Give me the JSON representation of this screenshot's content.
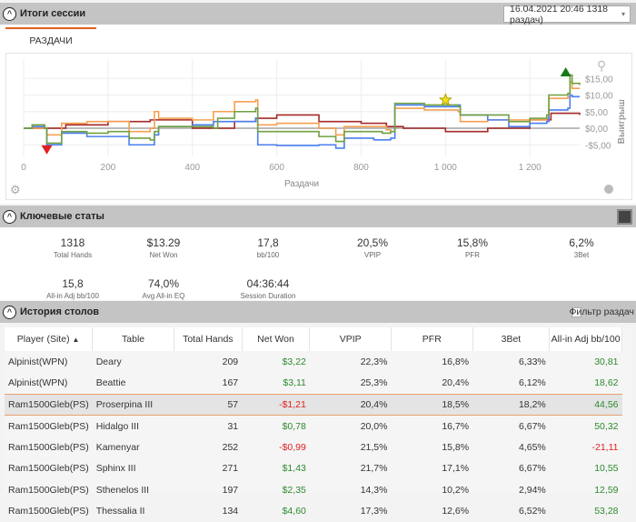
{
  "session": {
    "title": "Итоги сессии",
    "selector": "16.04.2021 20:46 1318 раздач)",
    "tab": "РАЗДАЧИ"
  },
  "chart_data": {
    "type": "line",
    "xlabel": "Раздачи",
    "ylabel": "Выигрыш",
    "xlim": [
      0,
      1318
    ],
    "ylim": [
      -8,
      18
    ],
    "xticks": [
      {
        "v": 0,
        "l": "0"
      },
      {
        "v": 200,
        "l": "200"
      },
      {
        "v": 400,
        "l": "400"
      },
      {
        "v": 600,
        "l": "600"
      },
      {
        "v": 800,
        "l": "800"
      },
      {
        "v": 1000,
        "l": "1 000"
      },
      {
        "v": 1200,
        "l": "1 200"
      }
    ],
    "yticks": [
      {
        "v": 15,
        "l": "$15,00"
      },
      {
        "v": 10,
        "l": "$10,00"
      },
      {
        "v": 5,
        "l": "$5,00"
      },
      {
        "v": 0,
        "l": "$0,00"
      },
      {
        "v": -5,
        "l": "-$5,00"
      }
    ],
    "series": [
      {
        "name": "red",
        "color": "#a52a2a",
        "points": [
          [
            0,
            0
          ],
          [
            50,
            0
          ],
          [
            100,
            1
          ],
          [
            200,
            2
          ],
          [
            300,
            2.5
          ],
          [
            400,
            0
          ],
          [
            500,
            2
          ],
          [
            550,
            3
          ],
          [
            600,
            4
          ],
          [
            700,
            2
          ],
          [
            800,
            1.5
          ],
          [
            860,
            0.5
          ],
          [
            900,
            0
          ],
          [
            1000,
            -1
          ],
          [
            1100,
            0
          ],
          [
            1200,
            2.5
          ],
          [
            1250,
            4.5
          ],
          [
            1318,
            4
          ]
        ]
      },
      {
        "name": "orange",
        "color": "#f5a050",
        "points": [
          [
            0,
            0
          ],
          [
            55,
            -2
          ],
          [
            90,
            1.5
          ],
          [
            150,
            2
          ],
          [
            250,
            -1
          ],
          [
            300,
            0
          ],
          [
            310,
            5
          ],
          [
            320,
            3
          ],
          [
            400,
            2.5
          ],
          [
            450,
            5
          ],
          [
            500,
            8
          ],
          [
            550,
            8.5
          ],
          [
            555,
            1
          ],
          [
            600,
            1.5
          ],
          [
            700,
            0
          ],
          [
            740,
            -2
          ],
          [
            760,
            0.5
          ],
          [
            860,
            -0.5
          ],
          [
            870,
            -1
          ],
          [
            880,
            6
          ],
          [
            950,
            5.5
          ],
          [
            1030,
            5
          ],
          [
            1035,
            2
          ],
          [
            1100,
            2.5
          ],
          [
            1240,
            3
          ],
          [
            1245,
            9
          ],
          [
            1290,
            9.5
          ],
          [
            1295,
            14
          ],
          [
            1300,
            12
          ],
          [
            1318,
            12
          ]
        ]
      },
      {
        "name": "blue",
        "color": "#4a7ff0",
        "points": [
          [
            0,
            0
          ],
          [
            20,
            0.5
          ],
          [
            50,
            0
          ],
          [
            55,
            -5
          ],
          [
            90,
            -1.5
          ],
          [
            150,
            -2.5
          ],
          [
            250,
            -5
          ],
          [
            300,
            -5
          ],
          [
            310,
            -2
          ],
          [
            320,
            0.5
          ],
          [
            400,
            1
          ],
          [
            450,
            2
          ],
          [
            550,
            3
          ],
          [
            555,
            -5
          ],
          [
            600,
            -5.2
          ],
          [
            700,
            -5
          ],
          [
            740,
            -6
          ],
          [
            760,
            -3
          ],
          [
            830,
            -3.5
          ],
          [
            870,
            -3
          ],
          [
            880,
            7
          ],
          [
            950,
            6.5
          ],
          [
            1030,
            7
          ],
          [
            1035,
            4
          ],
          [
            1100,
            2.5
          ],
          [
            1150,
            0.5
          ],
          [
            1200,
            1.5
          ],
          [
            1240,
            2
          ],
          [
            1245,
            5.5
          ],
          [
            1290,
            6
          ],
          [
            1295,
            10
          ],
          [
            1300,
            9.5
          ],
          [
            1318,
            9.5
          ]
        ]
      },
      {
        "name": "green",
        "color": "#70a040",
        "points": [
          [
            0,
            0
          ],
          [
            20,
            1
          ],
          [
            50,
            0
          ],
          [
            55,
            -4.5
          ],
          [
            90,
            -1
          ],
          [
            150,
            -1.5
          ],
          [
            200,
            -1
          ],
          [
            250,
            -3
          ],
          [
            300,
            -3.5
          ],
          [
            310,
            -1
          ],
          [
            320,
            0.5
          ],
          [
            450,
            0
          ],
          [
            460,
            3
          ],
          [
            500,
            5
          ],
          [
            550,
            6
          ],
          [
            555,
            -1
          ],
          [
            600,
            -1
          ],
          [
            700,
            -2.5
          ],
          [
            740,
            -4
          ],
          [
            760,
            -1
          ],
          [
            850,
            -1.5
          ],
          [
            870,
            -1
          ],
          [
            880,
            7.5
          ],
          [
            950,
            7
          ],
          [
            1030,
            6.5
          ],
          [
            1035,
            4
          ],
          [
            1100,
            4
          ],
          [
            1150,
            2
          ],
          [
            1200,
            3
          ],
          [
            1240,
            4
          ],
          [
            1245,
            10
          ],
          [
            1290,
            10.5
          ],
          [
            1295,
            16
          ],
          [
            1300,
            13.5
          ],
          [
            1318,
            13
          ]
        ]
      }
    ],
    "markers": [
      {
        "type": "min",
        "x": 55,
        "y": -6.5,
        "color": "#e02020"
      },
      {
        "type": "star",
        "x": 1000,
        "y": 8.5,
        "color": "#f5e020"
      },
      {
        "type": "max",
        "x": 1285,
        "y": 17,
        "color": "#1a7a1a"
      }
    ]
  },
  "keystats": {
    "title": "Ключевые статы",
    "items": [
      {
        "v": "1318",
        "l": "Total Hands"
      },
      {
        "v": "$13.29",
        "l": "Net Won"
      },
      {
        "v": "17,8",
        "l": "bb/100"
      },
      {
        "v": "20,5%",
        "l": "VPIP"
      },
      {
        "v": "15,8%",
        "l": "PFR"
      },
      {
        "v": "6,2%",
        "l": "3Bet"
      },
      {
        "v": "15,8",
        "l": "All-in Adj bb/100"
      },
      {
        "v": "74,0%",
        "l": "Avg All-in EQ"
      },
      {
        "v": "04:36:44",
        "l": "Session Duration"
      }
    ]
  },
  "history": {
    "title": "История столов",
    "filter": "Фильтр раздач",
    "columns": [
      "Player (Site)",
      "Table",
      "Total Hands",
      "Net Won",
      "VPIP",
      "PFR",
      "3Bet",
      "All-in Adj bb/100"
    ],
    "rows": [
      [
        "Alpinist(WPN)",
        "Deary",
        "209",
        "$3,22",
        "22,3%",
        "16,8%",
        "6,33%",
        "30,81"
      ],
      [
        "Alpinist(WPN)",
        "Beattie",
        "167",
        "$3,11",
        "25,3%",
        "20,4%",
        "6,12%",
        "18,62"
      ],
      [
        "Ram1500Gleb(PS)",
        "Proserpina III",
        "57",
        "-$1,21",
        "20,4%",
        "18,5%",
        "18,2%",
        "44,56"
      ],
      [
        "Ram1500Gleb(PS)",
        "Hidalgo III",
        "31",
        "$0,78",
        "20,0%",
        "16,7%",
        "6,67%",
        "50,32"
      ],
      [
        "Ram1500Gleb(PS)",
        "Kamenyar",
        "252",
        "-$0,99",
        "21,5%",
        "15,8%",
        "4,65%",
        "-21,11"
      ],
      [
        "Ram1500Gleb(PS)",
        "Sphinx III",
        "271",
        "$1,43",
        "21,7%",
        "17,1%",
        "6,67%",
        "10,55"
      ],
      [
        "Ram1500Gleb(PS)",
        "Sthenelos III",
        "197",
        "$2,35",
        "14,3%",
        "10,2%",
        "2,94%",
        "12,59"
      ],
      [
        "Ram1500Gleb(PS)",
        "Thessalia II",
        "134",
        "$4,60",
        "17,3%",
        "12,6%",
        "6,52%",
        "53,28"
      ]
    ]
  }
}
